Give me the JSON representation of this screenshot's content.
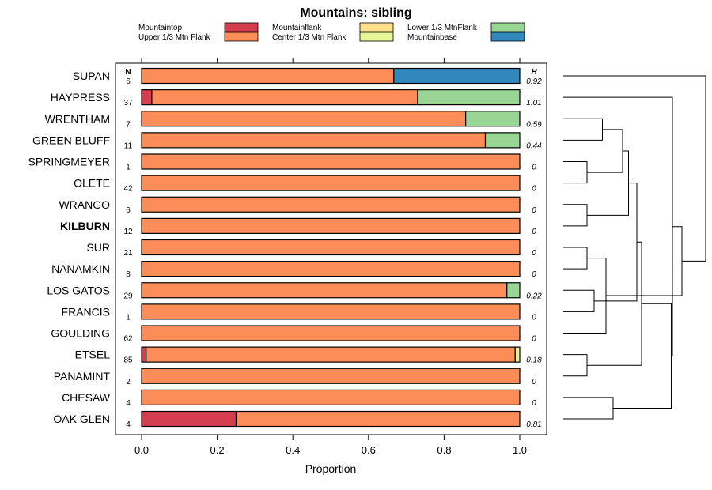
{
  "chart_data": {
    "type": "stacked-bar-horizontal",
    "title": "Mountains: sibling",
    "xlabel": "Proportion",
    "xlim": [
      0,
      1
    ],
    "x_ticks": [
      "0.0",
      "0.2",
      "0.4",
      "0.6",
      "0.8",
      "1.0"
    ],
    "n_header": "N",
    "h_header": "H",
    "legend": [
      {
        "name": "Mountaintop",
        "color": "#d53e4f"
      },
      {
        "name": "Upper 1/3 Mtn Flank",
        "color": "#fc8d59"
      },
      {
        "name": "Mountainflank",
        "color": "#fee08b"
      },
      {
        "name": "Center 1/3 Mtn Flank",
        "color": "#e6f598"
      },
      {
        "name": "Lower 1/3 MtnFlank",
        "color": "#99d594"
      },
      {
        "name": "Mountainbase",
        "color": "#3288bd"
      }
    ],
    "categories": [
      "SUPAN",
      "HAYPRESS",
      "WRENTHAM",
      "GREEN BLUFF",
      "SPRINGMEYER",
      "OLETE",
      "WRANGO",
      "KILBURN",
      "SUR",
      "NANAMKIN",
      "LOS GATOS",
      "FRANCIS",
      "GOULDING",
      "ETSEL",
      "PANAMINT",
      "CHESAW",
      "OAK GLEN"
    ],
    "bold_category": "KILBURN",
    "n": [
      "6",
      "37",
      "7",
      "11",
      "1",
      "42",
      "6",
      "12",
      "21",
      "8",
      "29",
      "1",
      "62",
      "85",
      "2",
      "4",
      "4"
    ],
    "h": [
      "0.92",
      "1.01",
      "0.59",
      "0.44",
      "0",
      "0",
      "0",
      "0",
      "0",
      "0",
      "0.22",
      "0",
      "0",
      "0.18",
      "0",
      "0",
      "0.81"
    ],
    "series": [
      {
        "name": "Mountaintop",
        "values": [
          0,
          0.027,
          0,
          0,
          0,
          0,
          0,
          0,
          0,
          0,
          0,
          0,
          0,
          0.012,
          0,
          0,
          0.25
        ]
      },
      {
        "name": "Upper 1/3 Mtn Flank",
        "values": [
          0.667,
          0.703,
          0.857,
          0.909,
          1,
          1,
          1,
          1,
          1,
          1,
          0.966,
          1,
          1,
          0.976,
          1,
          1,
          0.75
        ]
      },
      {
        "name": "Mountainflank",
        "values": [
          0,
          0,
          0,
          0,
          0,
          0,
          0,
          0,
          0,
          0,
          0,
          0,
          0,
          0,
          0,
          0,
          0
        ]
      },
      {
        "name": "Center 1/3 Mtn Flank",
        "values": [
          0,
          0,
          0,
          0,
          0,
          0,
          0,
          0,
          0,
          0,
          0,
          0,
          0,
          0.012,
          0,
          0,
          0
        ]
      },
      {
        "name": "Lower 1/3 MtnFlank",
        "values": [
          0,
          0.27,
          0.143,
          0.091,
          0,
          0,
          0,
          0,
          0,
          0,
          0.034,
          0,
          0,
          0,
          0,
          0,
          0
        ]
      },
      {
        "name": "Mountainbase",
        "values": [
          0.333,
          0,
          0,
          0,
          0,
          0,
          0,
          0,
          0,
          0,
          0,
          0,
          0,
          0,
          0,
          0,
          0
        ]
      }
    ],
    "dendrogram_merges": [
      [
        0.2,
        6,
        7
      ],
      [
        0.2,
        4,
        5
      ],
      [
        0.2,
        8,
        9
      ],
      [
        0.2,
        13,
        14
      ],
      [
        0.26,
        10,
        11
      ],
      [
        0.33,
        2,
        3
      ],
      [
        0.36,
        12,
        19
      ],
      [
        0.42,
        15,
        16
      ],
      [
        0.5,
        18,
        22
      ],
      [
        0.55,
        17,
        25
      ],
      [
        0.62,
        21,
        26
      ],
      [
        0.66,
        20,
        27
      ],
      [
        0.91,
        24,
        28
      ],
      [
        0.92,
        1,
        29
      ],
      [
        1.0,
        23,
        30
      ],
      [
        1.2,
        0,
        31
      ]
    ]
  }
}
